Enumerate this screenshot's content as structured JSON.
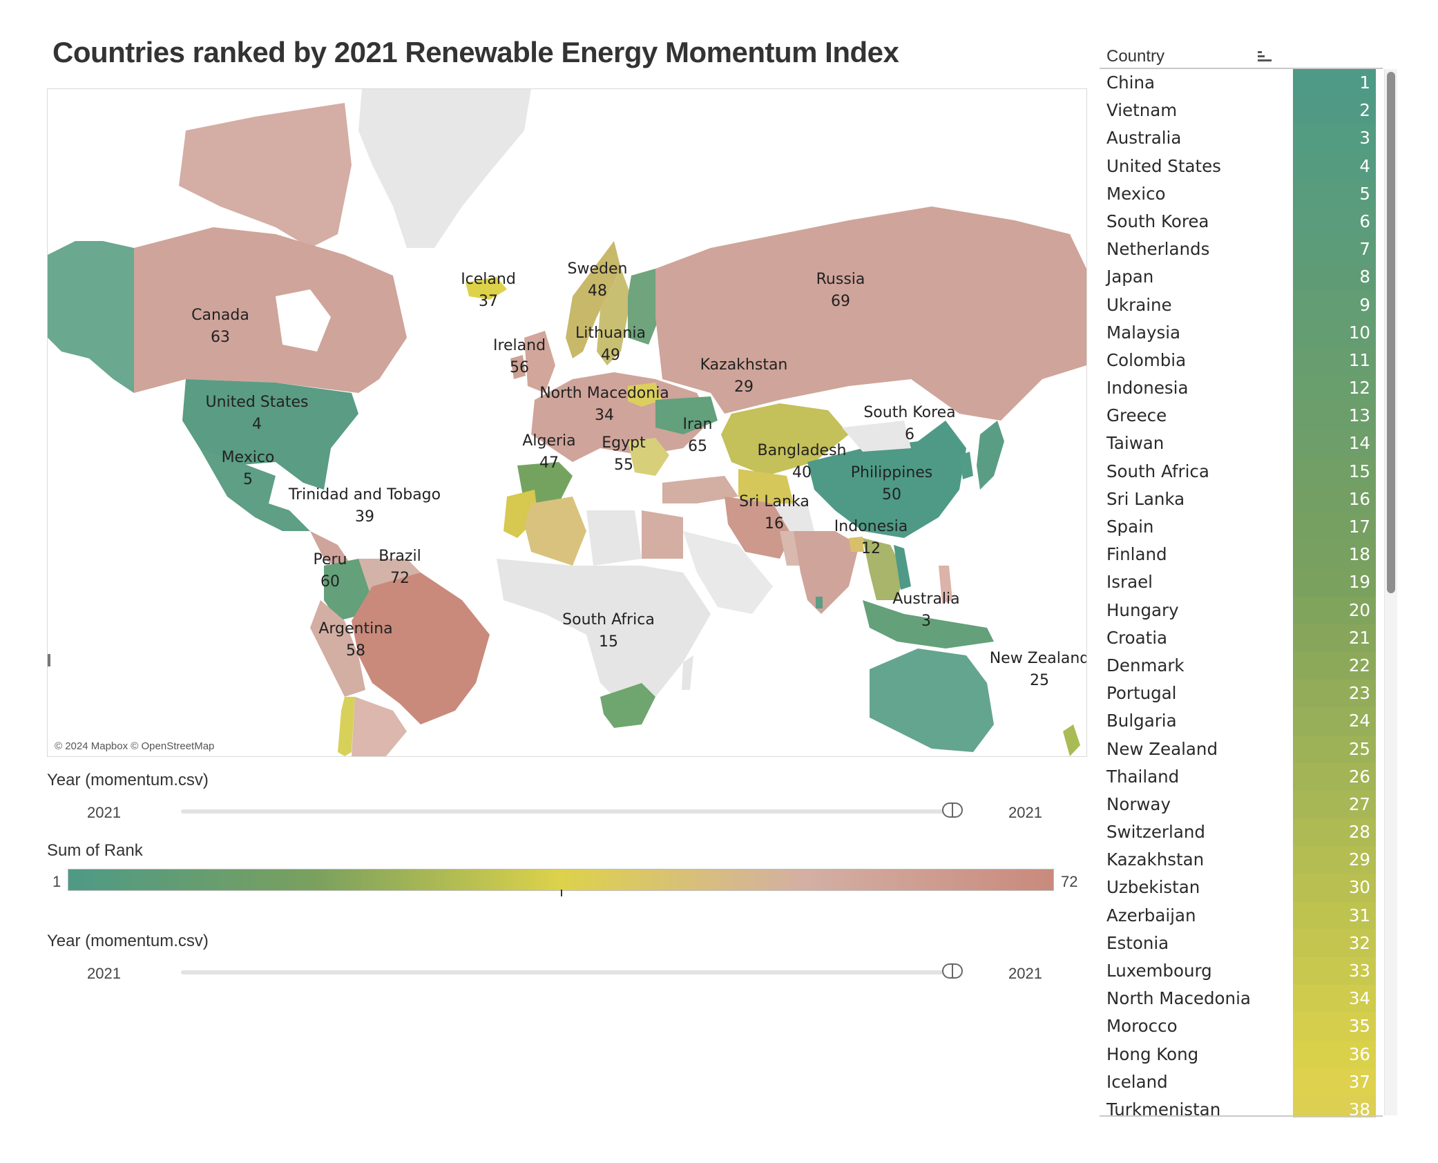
{
  "title": "Countries ranked by 2021 Renewable Energy Momentum Index",
  "map": {
    "attribution": "© 2024 Mapbox © OpenStreetMap",
    "labels": [
      {
        "country": "Canada",
        "rank": "63"
      },
      {
        "country": "United States",
        "rank": "4"
      },
      {
        "country": "Mexico",
        "rank": "5"
      },
      {
        "country": "Trinidad and Tobago",
        "rank": "39"
      },
      {
        "country": "Peru",
        "rank": "60"
      },
      {
        "country": "Brazil",
        "rank": "72"
      },
      {
        "country": "Argentina",
        "rank": "58"
      },
      {
        "country": "Iceland",
        "rank": "37"
      },
      {
        "country": "Ireland",
        "rank": "56"
      },
      {
        "country": "Sweden",
        "rank": "48"
      },
      {
        "country": "Lithuania",
        "rank": "49"
      },
      {
        "country": "North Macedonia",
        "rank": "34"
      },
      {
        "country": "Algeria",
        "rank": "47"
      },
      {
        "country": "Egypt",
        "rank": "55"
      },
      {
        "country": "Russia",
        "rank": "69"
      },
      {
        "country": "Kazakhstan",
        "rank": "29"
      },
      {
        "country": "Iran",
        "rank": "65"
      },
      {
        "country": "Bangladesh",
        "rank": "40"
      },
      {
        "country": "Sri Lanka",
        "rank": "16"
      },
      {
        "country": "South Korea",
        "rank": "6"
      },
      {
        "country": "Philippines",
        "rank": "50"
      },
      {
        "country": "Indonesia",
        "rank": "12"
      },
      {
        "country": "Australia",
        "rank": "3"
      },
      {
        "country": "South Africa",
        "rank": "15"
      },
      {
        "country": "New Zealand",
        "rank": "25"
      }
    ]
  },
  "filter1": {
    "title": "Year (momentum.csv)",
    "min": "2021",
    "max": "2021"
  },
  "legend": {
    "title": "Sum of Rank",
    "min": "1",
    "max": "72",
    "colors": [
      "#4e9a86",
      "#7aa05e",
      "#ddd24a",
      "#d3afa4",
      "#c98a7c"
    ]
  },
  "filter2": {
    "title": "Year (momentum.csv)",
    "min": "2021",
    "max": "2021"
  },
  "table": {
    "header": "Country",
    "rows": [
      {
        "country": "China",
        "rank": "1"
      },
      {
        "country": "Vietnam",
        "rank": "2"
      },
      {
        "country": "Australia",
        "rank": "3"
      },
      {
        "country": "United States",
        "rank": "4"
      },
      {
        "country": "Mexico",
        "rank": "5"
      },
      {
        "country": "South Korea",
        "rank": "6"
      },
      {
        "country": "Netherlands",
        "rank": "7"
      },
      {
        "country": "Japan",
        "rank": "8"
      },
      {
        "country": "Ukraine",
        "rank": "9"
      },
      {
        "country": "Malaysia",
        "rank": "10"
      },
      {
        "country": "Colombia",
        "rank": "11"
      },
      {
        "country": "Indonesia",
        "rank": "12"
      },
      {
        "country": "Greece",
        "rank": "13"
      },
      {
        "country": "Taiwan",
        "rank": "14"
      },
      {
        "country": "South Africa",
        "rank": "15"
      },
      {
        "country": "Sri Lanka",
        "rank": "16"
      },
      {
        "country": "Spain",
        "rank": "17"
      },
      {
        "country": "Finland",
        "rank": "18"
      },
      {
        "country": "Israel",
        "rank": "19"
      },
      {
        "country": "Hungary",
        "rank": "20"
      },
      {
        "country": "Croatia",
        "rank": "21"
      },
      {
        "country": "Denmark",
        "rank": "22"
      },
      {
        "country": "Portugal",
        "rank": "23"
      },
      {
        "country": "Bulgaria",
        "rank": "24"
      },
      {
        "country": "New Zealand",
        "rank": "25"
      },
      {
        "country": "Thailand",
        "rank": "26"
      },
      {
        "country": "Norway",
        "rank": "27"
      },
      {
        "country": "Switzerland",
        "rank": "28"
      },
      {
        "country": "Kazakhstan",
        "rank": "29"
      },
      {
        "country": "Uzbekistan",
        "rank": "30"
      },
      {
        "country": "Azerbaijan",
        "rank": "31"
      },
      {
        "country": "Estonia",
        "rank": "32"
      },
      {
        "country": "Luxembourg",
        "rank": "33"
      },
      {
        "country": "North Macedonia",
        "rank": "34"
      },
      {
        "country": "Morocco",
        "rank": "35"
      },
      {
        "country": "Hong Kong",
        "rank": "36"
      },
      {
        "country": "Iceland",
        "rank": "37"
      },
      {
        "country": "Turkmenistan",
        "rank": "38"
      }
    ]
  }
}
